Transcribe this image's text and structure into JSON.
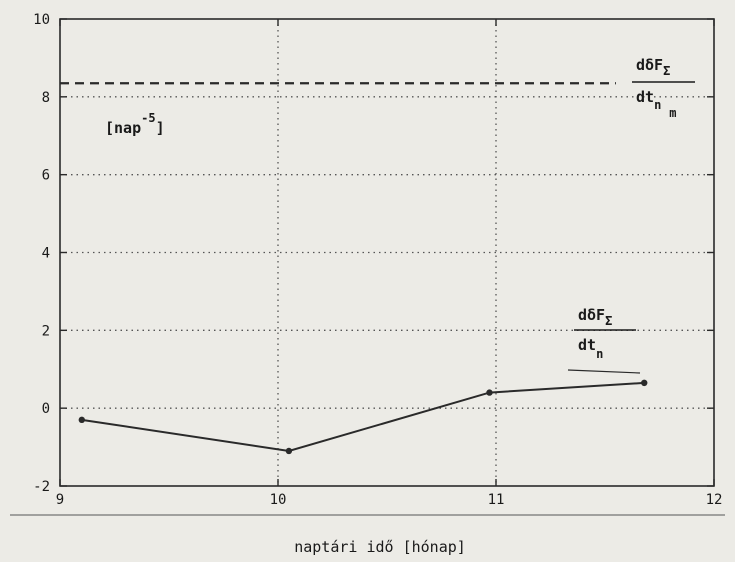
{
  "chart_data": {
    "type": "line",
    "title": "",
    "xlabel": "naptári idő [hónap]",
    "ylabel": "[nap",
    "ylabel_exponent": "-5",
    "ylabel_close": "]",
    "xlim": [
      9,
      12
    ],
    "ylim": [
      -2,
      10
    ],
    "x_ticks": [
      9,
      10,
      11,
      12
    ],
    "y_ticks": [
      -2,
      0,
      2,
      4,
      6,
      8,
      10
    ],
    "grid": true,
    "series": [
      {
        "name": "",
        "style": "solid",
        "color": "#2a2a2a",
        "x": [
          9.1,
          10.05,
          10.97,
          11.68
        ],
        "y": [
          -0.3,
          -1.1,
          0.4,
          0.65
        ]
      },
      {
        "name": "",
        "style": "dashed",
        "color": "#2a2a2a",
        "x": [
          9.0,
          11.55
        ],
        "y": [
          8.35,
          8.35
        ]
      }
    ],
    "annotations": {
      "mean_label": {
        "num": "dδF",
        "num_sub": "Σ",
        "den": "dt",
        "den_sub": "n",
        "den_sub2": "m"
      },
      "curve_label": {
        "num": "dδF",
        "num_sub": "Σ",
        "den": "dt",
        "den_sub": "n"
      }
    }
  }
}
